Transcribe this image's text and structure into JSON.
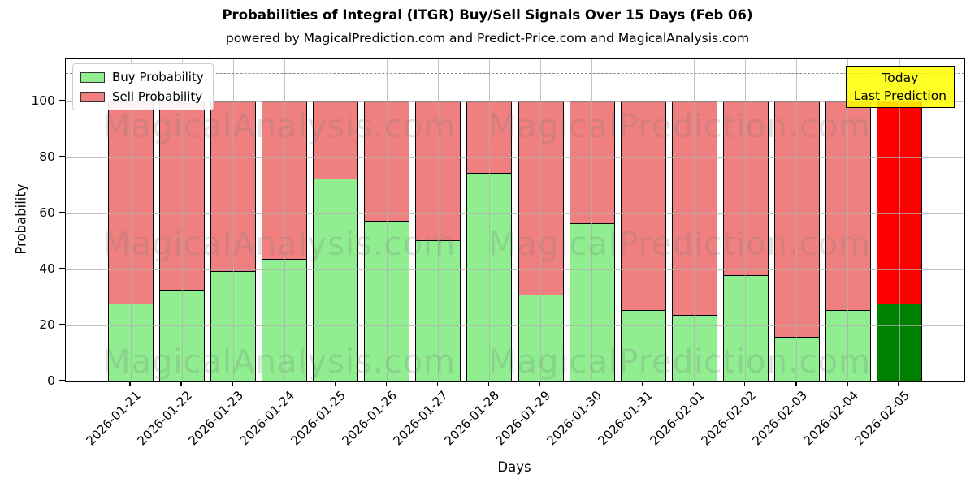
{
  "title": "Probabilities of Integral (ITGR) Buy/Sell Signals Over 15 Days (Feb 06)",
  "subtitle": "powered by MagicalPrediction.com and Predict-Price.com and MagicalAnalysis.com",
  "legend": {
    "items": [
      {
        "label": "Buy Probability",
        "color": "#90EE90"
      },
      {
        "label": "Sell Probability",
        "color": "#F08080"
      }
    ]
  },
  "annotation": {
    "line1": "Today",
    "line2": "Last Prediction",
    "bg_color": "#FFFF00"
  },
  "watermarks": {
    "left_text": "MagicalAnalysis.com",
    "right_text": "MagicalPrediction.com"
  },
  "chart_data": {
    "type": "bar",
    "stacked": true,
    "title": "Probabilities of Integral (ITGR) Buy/Sell Signals Over 15 Days (Feb 06)",
    "xlabel": "Days",
    "ylabel": "Probability",
    "categories": [
      "2026-01-21",
      "2026-01-22",
      "2026-01-23",
      "2026-01-24",
      "2026-01-25",
      "2026-01-26",
      "2026-01-27",
      "2026-01-28",
      "2026-01-29",
      "2026-01-30",
      "2026-01-31",
      "2026-02-01",
      "2026-02-02",
      "2026-02-03",
      "2026-02-04",
      "2026-02-05"
    ],
    "series": [
      {
        "name": "Buy Probability",
        "color": "#90EE90",
        "today_color": "#008000",
        "values": [
          28,
          33,
          39.5,
          44,
          72.5,
          57.5,
          50.5,
          74.5,
          31,
          56.5,
          25.5,
          24,
          38,
          16,
          25.5,
          28
        ]
      },
      {
        "name": "Sell Probability",
        "color": "#F08080",
        "today_color": "#FF0000",
        "values": [
          72,
          67,
          60.5,
          56,
          27.5,
          42.5,
          49.5,
          25.5,
          69,
          43.5,
          74.5,
          76,
          62,
          84,
          74.5,
          72
        ]
      }
    ],
    "yticks": [
      0,
      20,
      40,
      60,
      80,
      100
    ],
    "ylim": [
      0,
      115
    ],
    "dashed_line_y": 110,
    "today_index": 15,
    "grid": true,
    "legend_position": "upper left"
  }
}
